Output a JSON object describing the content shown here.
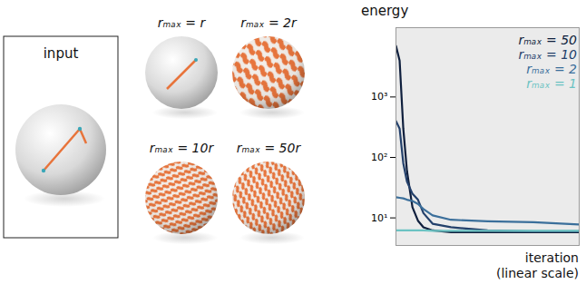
{
  "chart_data": {
    "type": "line",
    "y_label": "energy",
    "x_label": "iteration\n(linear scale)",
    "log": "y",
    "xlim": [
      0,
      100
    ],
    "ylim": [
      3.5,
      14000
    ],
    "yticks": [
      {
        "value": 10,
        "label": "10¹"
      },
      {
        "value": 100,
        "label": "10²"
      },
      {
        "value": 1000,
        "label": "10³"
      }
    ],
    "grid": false,
    "tick_labels": "y",
    "legend": "top-right",
    "x": [
      0,
      2,
      4,
      6,
      9,
      12,
      15,
      20,
      30,
      50,
      75,
      100
    ],
    "series": [
      {
        "name": "rₘₐₓ = 50",
        "color": "#0f1f3d",
        "values": [
          7000,
          4000,
          300,
          60,
          15,
          9,
          7,
          6.2,
          5.8,
          5.8,
          5.8,
          5.8
        ]
      },
      {
        "name": "rₘₐₓ = 10",
        "color": "#23406b",
        "values": [
          400,
          300,
          80,
          40,
          25,
          20,
          12,
          8,
          7,
          6.2,
          6,
          6
        ]
      },
      {
        "name": "rₘₐₓ = 2",
        "color": "#3b6f9b",
        "values": [
          22,
          21.5,
          21,
          20,
          19,
          17,
          14,
          11,
          9.3,
          8.8,
          8.5,
          7.8
        ]
      },
      {
        "name": "rₘₐₓ = 1",
        "color": "#6cc3c3",
        "values": [
          6.2,
          6.2,
          6.2,
          6.2,
          6.2,
          6.2,
          6.2,
          6.1,
          6.1,
          6.1,
          6.1,
          6.1
        ]
      }
    ]
  },
  "figure": {
    "input_label": "input",
    "panels": [
      "rₘₐₓ = r",
      "rₘₐₓ = 2r",
      "rₘₐₓ = 10r",
      "rₘₐₓ = 50r"
    ]
  }
}
